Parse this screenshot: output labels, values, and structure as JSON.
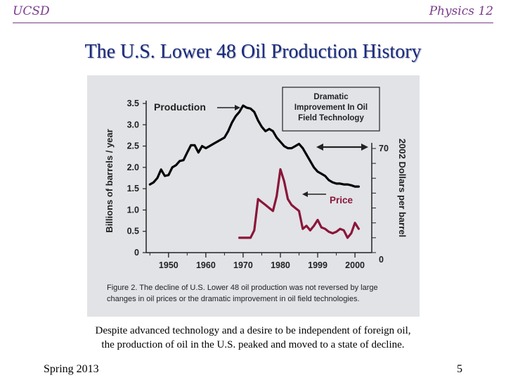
{
  "header": {
    "left": "UCSD",
    "right": "Physics 12"
  },
  "title": "The U.S. Lower 48 Oil Production History",
  "chart_data": {
    "type": "line",
    "x_ticks": [
      "1950",
      "1960",
      "1970",
      "1980",
      "1999",
      "2000"
    ],
    "y_left_label": "Billions of barrels / year",
    "y_left_ticks": [
      "0",
      "0.5",
      "1.0",
      "1.5",
      "2.0",
      "2.5",
      "3.0",
      "3.5"
    ],
    "y_left_range": [
      0,
      3.5
    ],
    "y_right_label": "2002 Dollars per barrel",
    "y_right_ticks": [
      "0",
      "70"
    ],
    "y_right_range": [
      0,
      70
    ],
    "annotation_box": "Dramatic Improvement In Oil Field Technology",
    "series": [
      {
        "name": "Production",
        "axis": "left",
        "color": "#000000",
        "points": [
          [
            1945,
            1.6
          ],
          [
            1946,
            1.65
          ],
          [
            1947,
            1.75
          ],
          [
            1948,
            1.95
          ],
          [
            1949,
            1.8
          ],
          [
            1950,
            1.82
          ],
          [
            1951,
            2.0
          ],
          [
            1952,
            2.05
          ],
          [
            1953,
            2.15
          ],
          [
            1954,
            2.17
          ],
          [
            1955,
            2.35
          ],
          [
            1956,
            2.52
          ],
          [
            1957,
            2.52
          ],
          [
            1958,
            2.35
          ],
          [
            1959,
            2.5
          ],
          [
            1960,
            2.45
          ],
          [
            1961,
            2.5
          ],
          [
            1962,
            2.55
          ],
          [
            1963,
            2.6
          ],
          [
            1964,
            2.65
          ],
          [
            1965,
            2.7
          ],
          [
            1966,
            2.85
          ],
          [
            1967,
            3.05
          ],
          [
            1968,
            3.2
          ],
          [
            1969,
            3.3
          ],
          [
            1970,
            3.45
          ],
          [
            1971,
            3.4
          ],
          [
            1972,
            3.38
          ],
          [
            1973,
            3.3
          ],
          [
            1974,
            3.1
          ],
          [
            1975,
            2.95
          ],
          [
            1976,
            2.85
          ],
          [
            1977,
            2.9
          ],
          [
            1978,
            2.85
          ],
          [
            1979,
            2.7
          ],
          [
            1980,
            2.6
          ],
          [
            1981,
            2.5
          ],
          [
            1982,
            2.45
          ],
          [
            1983,
            2.45
          ],
          [
            1984,
            2.5
          ],
          [
            1985,
            2.55
          ],
          [
            1986,
            2.45
          ],
          [
            1987,
            2.3
          ],
          [
            1988,
            2.15
          ],
          [
            1989,
            2.0
          ],
          [
            1990,
            1.9
          ],
          [
            1991,
            1.85
          ],
          [
            1992,
            1.8
          ],
          [
            1993,
            1.7
          ],
          [
            1994,
            1.65
          ],
          [
            1995,
            1.62
          ],
          [
            1996,
            1.62
          ],
          [
            1997,
            1.6
          ],
          [
            1998,
            1.6
          ],
          [
            1999,
            1.58
          ],
          [
            2000,
            1.55
          ],
          [
            2001,
            1.55
          ]
        ]
      },
      {
        "name": "Price",
        "axis": "right",
        "color": "#8b1538",
        "points": [
          [
            1969,
            10
          ],
          [
            1970,
            10
          ],
          [
            1971,
            10
          ],
          [
            1972,
            10
          ],
          [
            1973,
            15
          ],
          [
            1974,
            36
          ],
          [
            1975,
            34
          ],
          [
            1976,
            32
          ],
          [
            1977,
            30
          ],
          [
            1978,
            28
          ],
          [
            1979,
            38
          ],
          [
            1980,
            56
          ],
          [
            1981,
            48
          ],
          [
            1982,
            36
          ],
          [
            1983,
            32
          ],
          [
            1984,
            30
          ],
          [
            1985,
            28
          ],
          [
            1986,
            16
          ],
          [
            1987,
            18
          ],
          [
            1988,
            15
          ],
          [
            1989,
            18
          ],
          [
            1990,
            22
          ],
          [
            1991,
            17
          ],
          [
            1992,
            16
          ],
          [
            1993,
            14
          ],
          [
            1994,
            13
          ],
          [
            1995,
            14
          ],
          [
            1996,
            16
          ],
          [
            1997,
            15
          ],
          [
            1998,
            10
          ],
          [
            1999,
            13
          ],
          [
            2000,
            20
          ],
          [
            2001,
            16
          ]
        ]
      }
    ]
  },
  "figure_caption": "Figure 2.  The decline of U.S. Lower 48 oil production was not reversed by large changes in oil prices or the dramatic improvement in oil field technologies.",
  "body_text": {
    "line1": "Despite advanced technology and a desire to be independent of foreign oil,",
    "line2": "the production of oil in the U.S. peaked and moved to a state of decline."
  },
  "footer": {
    "left": "Spring 2013",
    "right": "5"
  }
}
